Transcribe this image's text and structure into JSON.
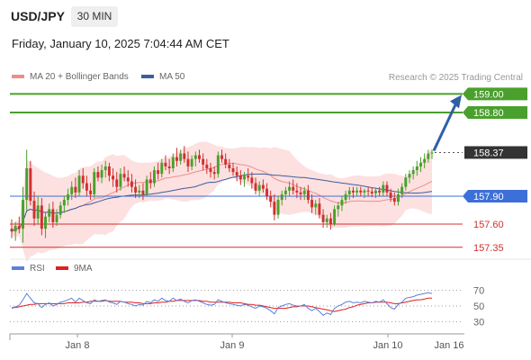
{
  "header": {
    "symbol": "USD/JPY",
    "timeframe": "30 MIN",
    "datetime": "Friday, January 10, 2025 7:04:44 AM CET"
  },
  "legend": {
    "ma20": {
      "label": "MA 20 + Bollinger Bands",
      "color": "#f08c8c"
    },
    "ma50": {
      "label": "MA 50",
      "color": "#3a5f9e"
    },
    "rsi": {
      "label": "RSI",
      "color": "#5a80d8"
    },
    "rsi_ma": {
      "label": "9MA",
      "color": "#e02020"
    }
  },
  "credit": "Research © 2025 Trading Central",
  "chart_data": [
    {
      "type": "candlestick",
      "x_ticks": [
        "Jan 8",
        "Jan 9",
        "Jan 10",
        "Jan 16"
      ],
      "ylim": [
        157.28,
        159.12
      ],
      "ohlc": [
        [
          157.55,
          157.65,
          157.45,
          157.52
        ],
        [
          157.52,
          157.62,
          157.42,
          157.58
        ],
        [
          157.58,
          157.68,
          157.5,
          157.55
        ],
        [
          157.55,
          158.0,
          157.4,
          157.86
        ],
        [
          157.86,
          158.4,
          157.75,
          158.2
        ],
        [
          158.2,
          158.28,
          157.8,
          157.85
        ],
        [
          157.85,
          157.95,
          157.58,
          157.66
        ],
        [
          157.66,
          157.9,
          157.6,
          157.8
        ],
        [
          157.8,
          157.88,
          157.48,
          157.55
        ],
        [
          157.55,
          157.72,
          157.45,
          157.68
        ],
        [
          157.68,
          157.82,
          157.62,
          157.76
        ],
        [
          157.76,
          157.84,
          157.56,
          157.62
        ],
        [
          157.62,
          157.76,
          157.58,
          157.7
        ],
        [
          157.7,
          157.84,
          157.66,
          157.8
        ],
        [
          157.8,
          157.9,
          157.72,
          157.86
        ],
        [
          157.86,
          157.98,
          157.8,
          157.92
        ],
        [
          157.92,
          158.06,
          157.86,
          158.0
        ],
        [
          158.0,
          158.1,
          157.88,
          157.94
        ],
        [
          157.94,
          158.18,
          157.9,
          158.12
        ],
        [
          158.12,
          158.2,
          157.98,
          158.04
        ],
        [
          158.04,
          158.12,
          157.9,
          157.96
        ],
        [
          157.96,
          158.04,
          157.86,
          157.92
        ],
        [
          157.92,
          158.2,
          157.88,
          158.16
        ],
        [
          158.16,
          158.22,
          158.06,
          158.1
        ],
        [
          158.1,
          158.24,
          158.04,
          158.18
        ],
        [
          158.18,
          158.28,
          158.1,
          158.22
        ],
        [
          158.22,
          158.26,
          158.06,
          158.12
        ],
        [
          158.12,
          158.2,
          158.0,
          158.08
        ],
        [
          158.08,
          158.16,
          157.94,
          158.0
        ],
        [
          158.0,
          158.2,
          157.96,
          158.14
        ],
        [
          158.14,
          158.22,
          158.06,
          158.1
        ],
        [
          158.1,
          158.18,
          158.0,
          158.06
        ],
        [
          158.06,
          158.14,
          157.94,
          158.0
        ],
        [
          158.0,
          158.08,
          157.88,
          157.94
        ],
        [
          157.94,
          158.02,
          157.88,
          157.96
        ],
        [
          157.96,
          158.04,
          157.86,
          157.92
        ],
        [
          157.92,
          158.12,
          157.9,
          158.08
        ],
        [
          158.08,
          158.16,
          157.98,
          158.04
        ],
        [
          158.04,
          158.22,
          158.0,
          158.18
        ],
        [
          158.18,
          158.26,
          158.08,
          158.14
        ],
        [
          158.14,
          158.3,
          158.1,
          158.26
        ],
        [
          158.26,
          158.34,
          158.18,
          158.22
        ],
        [
          158.22,
          158.3,
          158.14,
          158.2
        ],
        [
          158.2,
          158.36,
          158.16,
          158.32
        ],
        [
          158.32,
          158.42,
          158.22,
          158.28
        ],
        [
          158.28,
          158.4,
          158.24,
          158.36
        ],
        [
          158.36,
          158.44,
          158.26,
          158.3
        ],
        [
          158.3,
          158.38,
          158.16,
          158.22
        ],
        [
          158.22,
          158.34,
          158.18,
          158.3
        ],
        [
          158.3,
          158.38,
          158.22,
          158.34
        ],
        [
          158.34,
          158.4,
          158.26,
          158.3
        ],
        [
          158.3,
          158.36,
          158.18,
          158.24
        ],
        [
          158.24,
          158.3,
          158.14,
          158.2
        ],
        [
          158.2,
          158.26,
          158.1,
          158.16
        ],
        [
          158.16,
          158.22,
          158.08,
          158.14
        ],
        [
          158.14,
          158.38,
          158.1,
          158.34
        ],
        [
          158.34,
          158.4,
          158.26,
          158.3
        ],
        [
          158.3,
          158.36,
          158.2,
          158.24
        ],
        [
          158.24,
          158.3,
          158.16,
          158.2
        ],
        [
          158.2,
          158.26,
          158.12,
          158.16
        ],
        [
          158.16,
          158.22,
          158.06,
          158.12
        ],
        [
          158.12,
          158.18,
          158.02,
          158.08
        ],
        [
          158.08,
          158.16,
          158.0,
          158.12
        ],
        [
          158.12,
          158.2,
          158.06,
          158.1
        ],
        [
          158.1,
          158.16,
          157.98,
          158.04
        ],
        [
          158.04,
          158.1,
          157.92,
          157.96
        ],
        [
          157.96,
          158.06,
          157.9,
          158.02
        ],
        [
          158.02,
          158.08,
          157.94,
          157.98
        ],
        [
          157.98,
          158.04,
          157.86,
          157.9
        ],
        [
          157.9,
          157.96,
          157.78,
          157.84
        ],
        [
          157.84,
          157.92,
          157.64,
          157.7
        ],
        [
          157.7,
          157.9,
          157.66,
          157.86
        ],
        [
          157.86,
          157.96,
          157.8,
          157.92
        ],
        [
          157.92,
          158.0,
          157.86,
          157.96
        ],
        [
          157.96,
          158.06,
          157.9,
          158.0
        ],
        [
          158.0,
          158.08,
          157.92,
          157.96
        ],
        [
          157.96,
          158.04,
          157.88,
          157.94
        ],
        [
          157.94,
          158.0,
          157.86,
          157.92
        ],
        [
          157.92,
          158.0,
          157.86,
          157.96
        ],
        [
          157.96,
          158.02,
          157.82,
          157.86
        ],
        [
          157.86,
          157.92,
          157.72,
          157.78
        ],
        [
          157.78,
          157.86,
          157.7,
          157.82
        ],
        [
          157.82,
          157.88,
          157.66,
          157.7
        ],
        [
          157.7,
          157.76,
          157.56,
          157.62
        ],
        [
          157.62,
          157.7,
          157.56,
          157.66
        ],
        [
          157.66,
          157.72,
          157.54,
          157.6
        ],
        [
          157.6,
          157.8,
          157.58,
          157.76
        ],
        [
          157.76,
          157.84,
          157.68,
          157.8
        ],
        [
          157.8,
          157.9,
          157.74,
          157.86
        ],
        [
          157.86,
          157.96,
          157.82,
          157.92
        ],
        [
          157.92,
          158.0,
          157.86,
          157.96
        ],
        [
          157.96,
          158.0,
          157.88,
          157.94
        ],
        [
          157.94,
          158.0,
          157.9,
          157.96
        ],
        [
          157.96,
          158.0,
          157.9,
          157.94
        ],
        [
          157.94,
          157.98,
          157.88,
          157.96
        ],
        [
          157.96,
          158.0,
          157.9,
          157.95
        ],
        [
          157.95,
          157.99,
          157.89,
          157.93
        ],
        [
          157.93,
          157.99,
          157.88,
          157.96
        ],
        [
          157.96,
          158.0,
          157.9,
          157.94
        ],
        [
          157.94,
          158.06,
          157.9,
          158.02
        ],
        [
          158.02,
          158.06,
          157.9,
          157.94
        ],
        [
          157.94,
          157.98,
          157.84,
          157.88
        ],
        [
          157.88,
          157.94,
          157.8,
          157.84
        ],
        [
          157.84,
          157.98,
          157.8,
          157.92
        ],
        [
          157.92,
          158.04,
          157.88,
          158.0
        ],
        [
          158.0,
          158.14,
          157.96,
          158.1
        ],
        [
          158.1,
          158.18,
          158.04,
          158.14
        ],
        [
          158.14,
          158.22,
          158.08,
          158.18
        ],
        [
          158.18,
          158.28,
          158.12,
          158.22
        ],
        [
          158.22,
          158.32,
          158.16,
          158.26
        ],
        [
          158.26,
          158.36,
          158.2,
          158.3
        ],
        [
          158.3,
          158.4,
          158.26,
          158.36
        ],
        [
          158.36,
          158.4,
          158.3,
          158.37
        ]
      ]
    },
    {
      "type": "line",
      "name": "RSI",
      "ylim": [
        20,
        80
      ],
      "y_ticks": [
        70,
        50,
        30
      ],
      "rsi": [
        47,
        49,
        51,
        58,
        66,
        60,
        54,
        53,
        48,
        52,
        54,
        50,
        52,
        55,
        56,
        58,
        60,
        55,
        60,
        57,
        54,
        53,
        58,
        56,
        57,
        58,
        55,
        54,
        52,
        56,
        55,
        53,
        52,
        50,
        52,
        51,
        56,
        54,
        58,
        56,
        60,
        57,
        56,
        60,
        57,
        59,
        56,
        54,
        57,
        58,
        56,
        54,
        52,
        51,
        52,
        58,
        56,
        54,
        53,
        52,
        51,
        50,
        52,
        51,
        49,
        47,
        50,
        49,
        47,
        44,
        40,
        48,
        50,
        52,
        53,
        51,
        50,
        50,
        52,
        47,
        44,
        47,
        43,
        38,
        41,
        39,
        47,
        50,
        52,
        55,
        56,
        54,
        55,
        54,
        56,
        55,
        54,
        56,
        55,
        58,
        53,
        48,
        46,
        52,
        55,
        60,
        61,
        62,
        64,
        65,
        66,
        67,
        66
      ],
      "rsi_9ma": [
        48,
        48,
        49,
        50,
        51,
        52,
        52,
        53,
        53,
        53,
        53,
        53,
        53,
        53,
        53,
        54,
        54,
        54,
        54,
        55,
        55,
        56,
        56,
        56,
        56,
        57,
        56,
        56,
        56,
        56,
        55,
        55,
        55,
        54,
        54,
        53,
        53,
        53,
        54,
        54,
        55,
        55,
        56,
        56,
        57,
        57,
        57,
        57,
        57,
        57,
        57,
        56,
        56,
        55,
        55,
        55,
        55,
        55,
        55,
        54,
        54,
        54,
        53,
        52,
        52,
        51,
        51,
        50,
        49,
        48,
        47,
        47,
        47,
        47,
        48,
        49,
        49,
        50,
        50,
        50,
        49,
        48,
        47,
        46,
        45,
        44,
        43,
        44,
        45,
        46,
        48,
        49,
        51,
        52,
        53,
        54,
        54,
        55,
        55,
        55,
        55,
        54,
        53,
        53,
        54,
        55,
        56,
        57,
        58,
        58,
        59,
        60,
        60
      ]
    }
  ],
  "levels": [
    {
      "value": "159.00",
      "label": "159.00",
      "color": "#4aa02c"
    },
    {
      "value": "158.80",
      "label": "158.80",
      "color": "#4aa02c"
    },
    {
      "value": "158.37",
      "label": "158.37",
      "color": "#333333"
    },
    {
      "value": "157.90",
      "label": "157.90",
      "color": "#3d6fd8"
    },
    {
      "value": "157.60",
      "label": "157.60",
      "color": "#d03030"
    },
    {
      "value": "157.35",
      "label": "157.35",
      "color": "#d03030"
    }
  ],
  "colors": {
    "bull": "#4aa02c",
    "bear": "#d03030",
    "bb_fill": "#fde0e0",
    "arrow": "#2f5fa8",
    "current": "#333333"
  }
}
